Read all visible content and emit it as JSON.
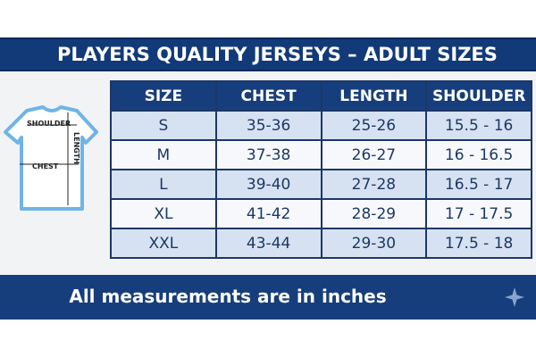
{
  "header": {
    "title": "PLAYERS QUALITY JERSEYS – ADULT SIZES"
  },
  "diagram": {
    "shoulder": "SHOULDER",
    "length": "LENGTH",
    "chest": "CHEST"
  },
  "table": {
    "columns": [
      "SIZE",
      "CHEST",
      "LENGTH",
      "SHOULDER"
    ],
    "rows": [
      [
        "S",
        "35-36",
        "25-26",
        "15.5 - 16"
      ],
      [
        "M",
        "37-38",
        "26-27",
        "16 - 16.5"
      ],
      [
        "L",
        "39-40",
        "27-28",
        "16.5 - 17"
      ],
      [
        "XL",
        "41-42",
        "28-29",
        "17 - 17.5"
      ],
      [
        "XXL",
        "43-44",
        "29-30",
        "17.5 - 18"
      ]
    ]
  },
  "footer": {
    "note": "All measurements are in inches"
  }
}
